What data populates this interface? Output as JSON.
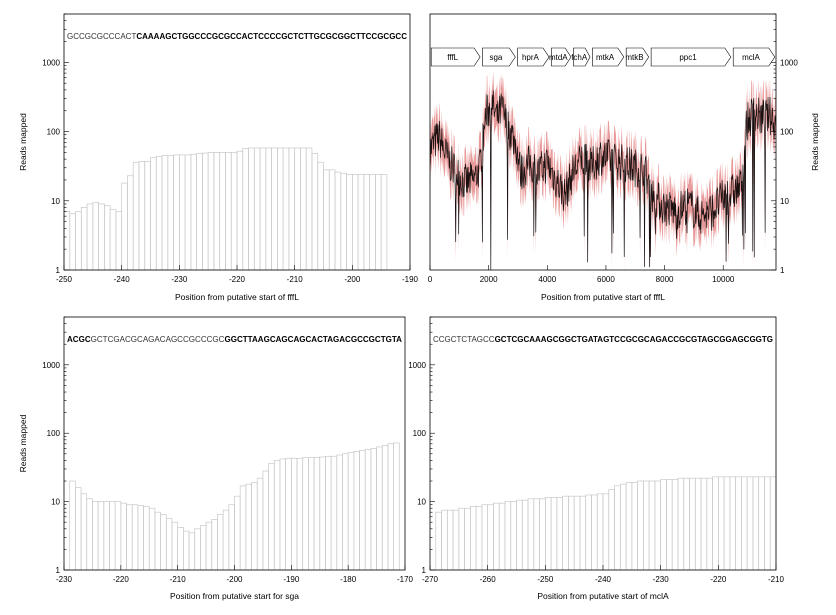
{
  "chart_data": [
    {
      "id": "A",
      "type": "bar",
      "xlabel": "Position from putative start of fffL",
      "ylabel": "Reads mapped",
      "ylog": true,
      "xlim": [
        -250,
        -190
      ],
      "ylim": [
        1,
        5000
      ],
      "xticks": [
        "-250",
        "-240",
        "-230",
        "-220",
        "-210",
        "-200",
        "-190"
      ],
      "yticks": [
        "1",
        "10",
        "100",
        "1000"
      ],
      "sequence": [
        {
          "text": "GCCGCGCCCACT",
          "bold": false
        },
        {
          "text": "CAAAAGCTGGCCCGCGCCACTCCCCGCTCTTGCGCGGCTTCCGCGCC",
          "bold": true
        }
      ],
      "x_start": -250,
      "values": [
        7,
        6.5,
        7,
        8,
        9,
        9.5,
        9,
        8.5,
        7.5,
        7,
        18,
        23,
        36,
        37,
        37,
        42,
        44,
        45,
        45,
        46,
        46,
        46,
        47,
        48,
        49,
        50,
        50,
        50,
        50,
        50,
        52,
        57,
        58,
        58,
        58,
        58,
        58,
        58,
        58,
        58,
        58,
        58,
        58,
        48,
        36,
        28,
        28,
        26,
        25,
        24,
        24,
        24,
        24,
        24,
        24,
        24
      ]
    },
    {
      "id": "B",
      "type": "line",
      "xlabel": "Position from putative start of fffL",
      "ylabel": "Reads mapped",
      "ylog": true,
      "xlim": [
        0,
        11800
      ],
      "ylim": [
        1,
        5000
      ],
      "xticks": [
        "0",
        "2000",
        "4000",
        "6000",
        "8000",
        "10000"
      ],
      "yticks": [
        "1",
        "10",
        "100",
        "1000"
      ],
      "genes": [
        {
          "name": "fffL",
          "start": 0,
          "end": 1750
        },
        {
          "name": "sga",
          "start": 1750,
          "end": 2950
        },
        {
          "name": "hprA",
          "start": 2950,
          "end": 4100
        },
        {
          "name": "mtdA",
          "start": 4100,
          "end": 4850
        },
        {
          "name": "fchA",
          "start": 4850,
          "end": 5500
        },
        {
          "name": "mtkA",
          "start": 5500,
          "end": 6650
        },
        {
          "name": "mtkB",
          "start": 6650,
          "end": 7500
        },
        {
          "name": "ppc1",
          "start": 7500,
          "end": 10300
        },
        {
          "name": "mclA",
          "start": 10300,
          "end": 11800
        }
      ],
      "profile": [
        [
          0,
          55
        ],
        [
          300,
          85
        ],
        [
          600,
          40
        ],
        [
          900,
          25
        ],
        [
          1200,
          18
        ],
        [
          1500,
          20
        ],
        [
          1700,
          30
        ],
        [
          1900,
          170
        ],
        [
          2100,
          250
        ],
        [
          2300,
          150
        ],
        [
          2450,
          220
        ],
        [
          2600,
          130
        ],
        [
          2800,
          90
        ],
        [
          2950,
          60
        ],
        [
          3100,
          25
        ],
        [
          3400,
          35
        ],
        [
          3700,
          25
        ],
        [
          4000,
          35
        ],
        [
          4300,
          20
        ],
        [
          4600,
          12
        ],
        [
          4900,
          28
        ],
        [
          5200,
          40
        ],
        [
          5500,
          30
        ],
        [
          5800,
          45
        ],
        [
          6200,
          40
        ],
        [
          6600,
          35
        ],
        [
          7000,
          30
        ],
        [
          7300,
          30
        ],
        [
          7600,
          12
        ],
        [
          8000,
          8
        ],
        [
          8400,
          7
        ],
        [
          8800,
          9
        ],
        [
          9200,
          6
        ],
        [
          9600,
          7
        ],
        [
          10000,
          11
        ],
        [
          10300,
          13
        ],
        [
          10600,
          16
        ],
        [
          10800,
          130
        ],
        [
          11000,
          180
        ],
        [
          11300,
          160
        ],
        [
          11600,
          170
        ],
        [
          11800,
          130
        ]
      ]
    },
    {
      "id": "C",
      "type": "bar",
      "xlabel": "Position from putative start for sga",
      "ylabel": "Reads mapped",
      "ylog": true,
      "xlim": [
        -230,
        -170
      ],
      "ylim": [
        1,
        5000
      ],
      "xticks": [
        "-230",
        "-220",
        "-210",
        "-200",
        "-190",
        "-180",
        "-170"
      ],
      "yticks": [
        "1",
        "10",
        "100",
        "1000"
      ],
      "sequence": [
        {
          "text": "ACGC",
          "bold": true
        },
        {
          "text": "GCTCGACGCAGACAGCCGCCCGC",
          "bold": false
        },
        {
          "text": "GGCTTAAGCAGCAGCACTAGACGCCGCTGTA",
          "bold": true
        }
      ],
      "x_start": -229,
      "values": [
        20,
        16,
        13,
        11,
        10,
        10,
        10,
        10,
        10,
        9.5,
        9,
        9,
        8.8,
        8.5,
        8,
        7,
        6.5,
        5.7,
        5,
        4.2,
        3.7,
        3.5,
        4,
        4.5,
        5,
        5.5,
        6.5,
        7.5,
        9,
        12,
        17,
        18,
        19,
        22,
        28,
        36,
        40,
        42,
        43,
        43,
        43,
        44,
        44,
        44,
        45,
        46,
        46,
        48,
        50,
        52,
        54,
        56,
        58,
        60,
        63,
        66,
        70,
        72
      ]
    },
    {
      "id": "D",
      "type": "bar",
      "xlabel": "Position from putative start of mclA",
      "ylabel": "",
      "ylog": true,
      "xlim": [
        -270,
        -210
      ],
      "ylim": [
        1,
        5000
      ],
      "xticks": [
        "-270",
        "-260",
        "-250",
        "-240",
        "-230",
        "-220",
        "-210"
      ],
      "yticks": [
        "1",
        "10",
        "100",
        "1000"
      ],
      "sequence": [
        {
          "text": "CCGCTCTAGCC",
          "bold": false
        },
        {
          "text": "GCTCGCAAAGCGGCTGATAGTCCGCGCAGACCGCGTAGCGGAGCGGTG",
          "bold": true
        }
      ],
      "x_start": -269,
      "values": [
        7,
        7.5,
        7.5,
        7.5,
        8,
        8,
        8.5,
        8.5,
        9,
        9,
        9.5,
        9.5,
        10,
        10,
        10.5,
        10.5,
        11,
        11,
        11,
        11.5,
        11.5,
        11.5,
        12,
        12,
        12,
        12,
        12.5,
        12.5,
        13,
        13,
        15,
        17,
        18,
        19,
        19,
        20,
        20,
        20,
        20,
        21,
        21,
        21,
        22,
        22,
        22,
        22,
        22,
        22,
        23,
        23,
        23,
        23,
        23,
        23,
        23,
        23,
        23,
        23,
        23
      ]
    }
  ]
}
